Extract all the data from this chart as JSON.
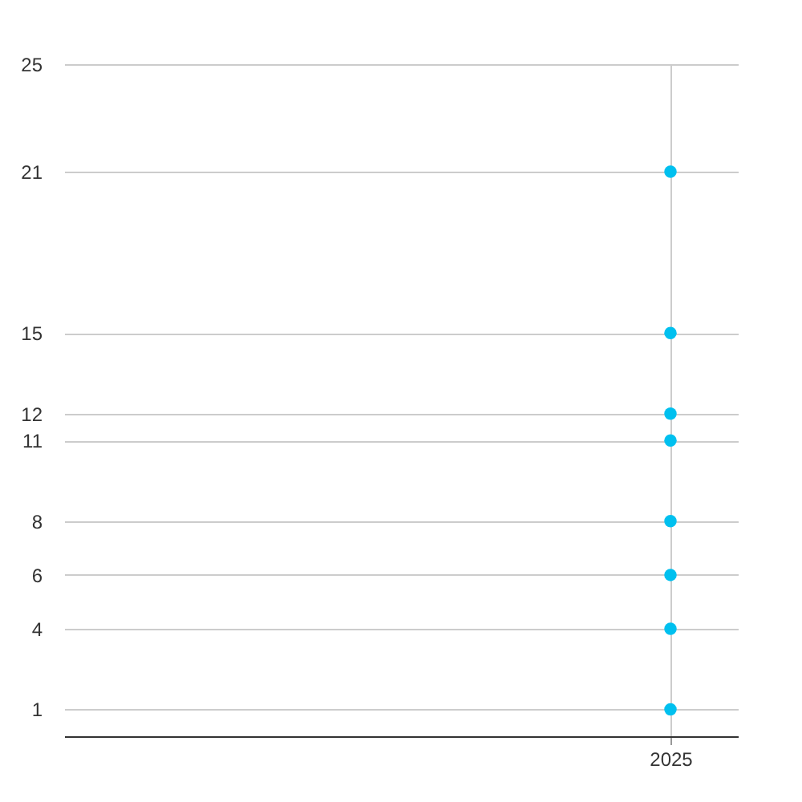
{
  "chart_data": {
    "type": "scatter",
    "categories": [
      "2025"
    ],
    "series": [
      {
        "color": "#00c0ef",
        "values": [
          1
        ]
      },
      {
        "color": "#00c0ef",
        "values": [
          4
        ]
      },
      {
        "color": "#00c0ef",
        "values": [
          6
        ]
      },
      {
        "color": "#00c0ef",
        "values": [
          8
        ]
      },
      {
        "color": "#00c0ef",
        "values": [
          11
        ]
      },
      {
        "color": "#00c0ef",
        "values": [
          12
        ]
      },
      {
        "color": "#00c0ef",
        "values": [
          15
        ]
      },
      {
        "color": "#00c0ef",
        "values": [
          21
        ]
      }
    ],
    "ylim": [
      0,
      25
    ],
    "yticks": [
      1,
      4,
      6,
      8,
      11,
      12,
      15,
      21,
      25
    ],
    "grid": true,
    "marker": "circle"
  }
}
